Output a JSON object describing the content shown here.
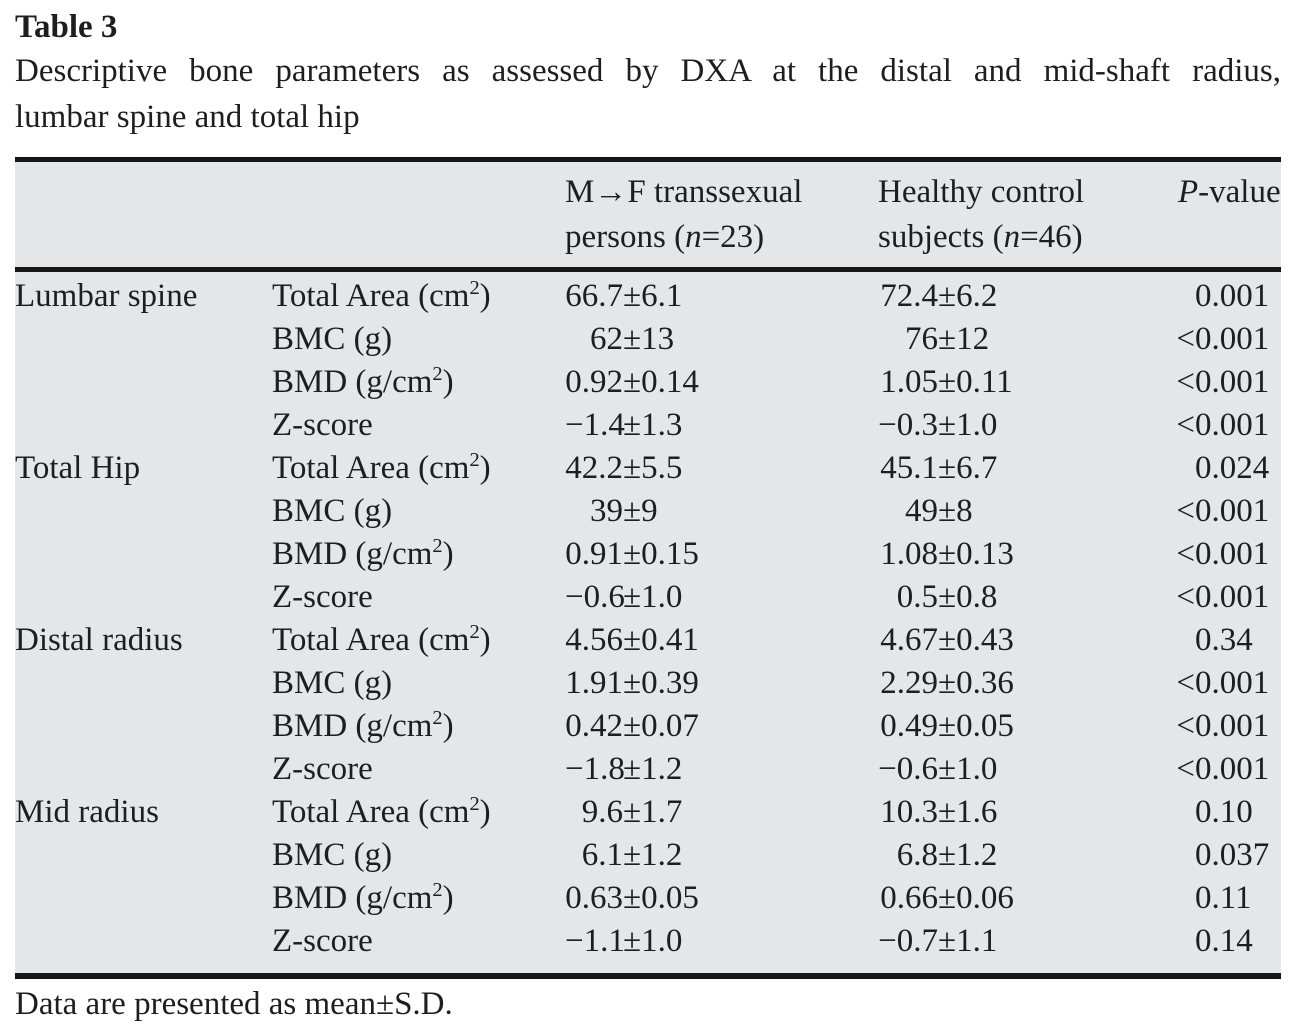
{
  "title": "Table 3",
  "caption_line1": "Descriptive bone parameters as assessed by DXA at the distal and mid-shaft radius,",
  "caption_line2": "lumbar spine and total hip",
  "footnote": "Data are presented as mean±S.D.",
  "signs": {
    "pm": "±"
  },
  "colors": {
    "table_background": "#e5e6e8",
    "rule": "#161616",
    "text": "#1e1e1e"
  },
  "header": {
    "mtf_line1": "M→F transsexual",
    "mtf_line2_pre": "persons (",
    "mtf_n": "n",
    "mtf_line2_post": "=23)",
    "ctl_line1": "Healthy control",
    "ctl_line2_pre": "subjects (",
    "ctl_n": "n",
    "ctl_line2_post": "=46)",
    "p_italic": "P",
    "p_rest": "-value"
  },
  "rows": [
    {
      "group": "Lumbar spine",
      "param": "Total Area (cm",
      "sup": "2",
      "param_end": ")",
      "m_mean": "66.7",
      "m_sd": "6.1",
      "c_mean": "72.4",
      "c_sd": "6.2",
      "p_pre": "",
      "p": "0.001"
    },
    {
      "group": "",
      "param": "BMC (g)",
      "sup": "",
      "param_end": "",
      "m_mean": "62",
      "m_sd": "13",
      "c_mean": "76",
      "c_sd": "12",
      "p_pre": "<",
      "p": "0.001"
    },
    {
      "group": "",
      "param": "BMD (g/cm",
      "sup": "2",
      "param_end": ")",
      "m_mean": "0.92",
      "m_sd": "0.14",
      "c_mean": "1.05",
      "c_sd": "0.11",
      "p_pre": "<",
      "p": "0.001"
    },
    {
      "group": "",
      "param": "Z-score",
      "sup": "",
      "param_end": "",
      "m_mean": "−1.4",
      "m_sd": "1.3",
      "c_mean": "−0.3",
      "c_sd": "1.0",
      "p_pre": "<",
      "p": "0.001"
    },
    {
      "group": "Total Hip",
      "param": "Total Area (cm",
      "sup": "2",
      "param_end": ")",
      "m_mean": "42.2",
      "m_sd": "5.5",
      "c_mean": "45.1",
      "c_sd": "6.7",
      "p_pre": "",
      "p": "0.024"
    },
    {
      "group": "",
      "param": "BMC (g)",
      "sup": "",
      "param_end": "",
      "m_mean": "39",
      "m_sd": "9",
      "c_mean": "49",
      "c_sd": "8",
      "p_pre": "<",
      "p": "0.001"
    },
    {
      "group": "",
      "param": "BMD (g/cm",
      "sup": "2",
      "param_end": ")",
      "m_mean": "0.91",
      "m_sd": "0.15",
      "c_mean": "1.08",
      "c_sd": "0.13",
      "p_pre": "<",
      "p": "0.001"
    },
    {
      "group": "",
      "param": "Z-score",
      "sup": "",
      "param_end": "",
      "m_mean": "−0.6",
      "m_sd": "1.0",
      "c_mean": "0.5",
      "c_sd": "0.8",
      "p_pre": "<",
      "p": "0.001"
    },
    {
      "group": "Distal radius",
      "param": "Total Area (cm",
      "sup": "2",
      "param_end": ")",
      "m_mean": "4.56",
      "m_sd": "0.41",
      "c_mean": "4.67",
      "c_sd": "0.43",
      "p_pre": "",
      "p": "0.34"
    },
    {
      "group": "",
      "param": "BMC (g)",
      "sup": "",
      "param_end": "",
      "m_mean": "1.91",
      "m_sd": "0.39",
      "c_mean": "2.29",
      "c_sd": "0.36",
      "p_pre": "<",
      "p": "0.001"
    },
    {
      "group": "",
      "param": "BMD (g/cm",
      "sup": "2",
      "param_end": ")",
      "m_mean": "0.42",
      "m_sd": "0.07",
      "c_mean": "0.49",
      "c_sd": "0.05",
      "p_pre": "<",
      "p": "0.001"
    },
    {
      "group": "",
      "param": "Z-score",
      "sup": "",
      "param_end": "",
      "m_mean": "−1.8",
      "m_sd": "1.2",
      "c_mean": "−0.6",
      "c_sd": "1.0",
      "p_pre": "<",
      "p": "0.001"
    },
    {
      "group": "Mid radius",
      "param": "Total Area (cm",
      "sup": "2",
      "param_end": ")",
      "m_mean": "9.6",
      "m_sd": "1.7",
      "c_mean": "10.3",
      "c_sd": "1.6",
      "p_pre": "",
      "p": "0.10"
    },
    {
      "group": "",
      "param": "BMC (g)",
      "sup": "",
      "param_end": "",
      "m_mean": "6.1",
      "m_sd": "1.2",
      "c_mean": "6.8",
      "c_sd": "1.2",
      "p_pre": "",
      "p": "0.037"
    },
    {
      "group": "",
      "param": "BMD (g/cm",
      "sup": "2",
      "param_end": ")",
      "m_mean": "0.63",
      "m_sd": "0.05",
      "c_mean": "0.66",
      "c_sd": "0.06",
      "p_pre": "",
      "p": "0.11"
    },
    {
      "group": "",
      "param": "Z-score",
      "sup": "",
      "param_end": "",
      "m_mean": "−1.1",
      "m_sd": "1.0",
      "c_mean": "−0.7",
      "c_sd": "1.1",
      "p_pre": "",
      "p": "0.14"
    }
  ]
}
